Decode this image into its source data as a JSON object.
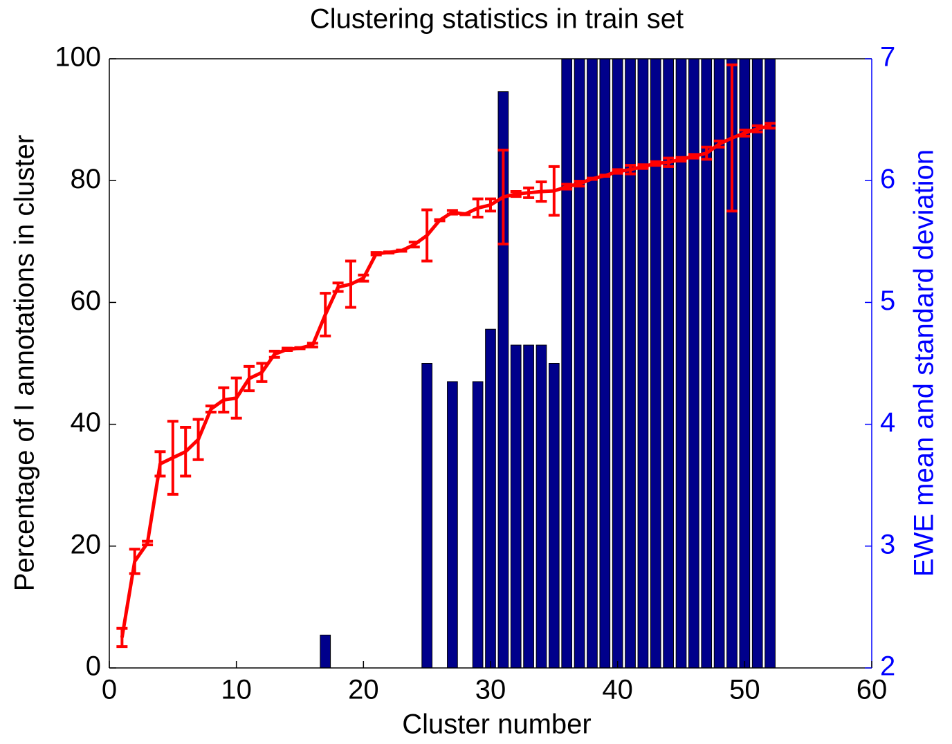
{
  "chart_data": {
    "type": "bar-line-errorbar",
    "title": "Clustering statistics in train set",
    "xlabel": "Cluster number",
    "ylabel": "Percentage of I annotations in cluster",
    "y2label": "EWE mean and standard deviation",
    "xlim": [
      0,
      60
    ],
    "xticks": [
      0,
      10,
      20,
      30,
      40,
      50,
      60
    ],
    "ylim": [
      0,
      100
    ],
    "yticks": [
      0,
      20,
      40,
      60,
      80,
      100
    ],
    "y2lim": [
      2,
      7
    ],
    "y2ticks": [
      2,
      3,
      4,
      5,
      6,
      7
    ],
    "series": [
      {
        "name": "EWE",
        "kind": "bar",
        "axis": "y2",
        "color": "#00008b",
        "x": [
          17,
          25,
          27,
          29,
          30,
          31,
          32,
          33,
          34,
          35,
          36,
          37,
          38,
          39,
          40,
          41,
          42,
          43,
          44,
          45,
          46,
          47,
          48,
          49,
          50,
          51,
          52
        ],
        "values": [
          2.27,
          4.5,
          4.35,
          4.35,
          4.78,
          6.73,
          4.65,
          4.65,
          4.65,
          4.5,
          7,
          7,
          7,
          7,
          7,
          7,
          7,
          7,
          7,
          7,
          7,
          7,
          7,
          7,
          7,
          7,
          7
        ]
      },
      {
        "name": "Percentage",
        "kind": "line",
        "color": "#ff0000",
        "x": [
          1,
          2,
          3,
          4,
          5,
          6,
          7,
          8,
          9,
          10,
          11,
          12,
          13,
          14,
          15,
          16,
          17,
          18,
          19,
          20,
          21,
          22,
          23,
          24,
          25,
          26,
          27,
          28,
          29,
          30,
          31,
          32,
          33,
          34,
          35,
          36,
          37,
          38,
          39,
          40,
          41,
          42,
          43,
          44,
          45,
          46,
          47,
          48,
          49,
          50,
          51,
          52
        ],
        "values": [
          5,
          17.5,
          20.5,
          33.5,
          34.5,
          35.5,
          37.5,
          42.5,
          44,
          44.3,
          47.5,
          48.5,
          51.5,
          52.3,
          52.5,
          53,
          58,
          62.5,
          63,
          64,
          68,
          68.2,
          68.5,
          69.5,
          71,
          73.5,
          74.8,
          74.5,
          75.5,
          76,
          77.3,
          77.8,
          78,
          78.2,
          78.3,
          79,
          79.5,
          80.3,
          80.8,
          81.5,
          81.8,
          82.3,
          82.8,
          83,
          83.5,
          84,
          84.5,
          86,
          87,
          87.8,
          88.5,
          89
        ],
        "errors": [
          1.5,
          2,
          0.3,
          2,
          6,
          4,
          3.3,
          0.5,
          2,
          3.3,
          2,
          1.5,
          0.5,
          0.2,
          0.1,
          0.3,
          3.5,
          0.7,
          3.8,
          0.5,
          0.2,
          0.1,
          0.1,
          0.4,
          4.2,
          0.1,
          0.3,
          0.1,
          1.5,
          1,
          7.7,
          0.4,
          0.8,
          1.6,
          4,
          0.4,
          0.4,
          0.1,
          0.1,
          0.3,
          0.7,
          0.3,
          0.3,
          0.7,
          0.3,
          0.3,
          1,
          0.5,
          12,
          0.5,
          0.5,
          0.4
        ]
      }
    ]
  }
}
